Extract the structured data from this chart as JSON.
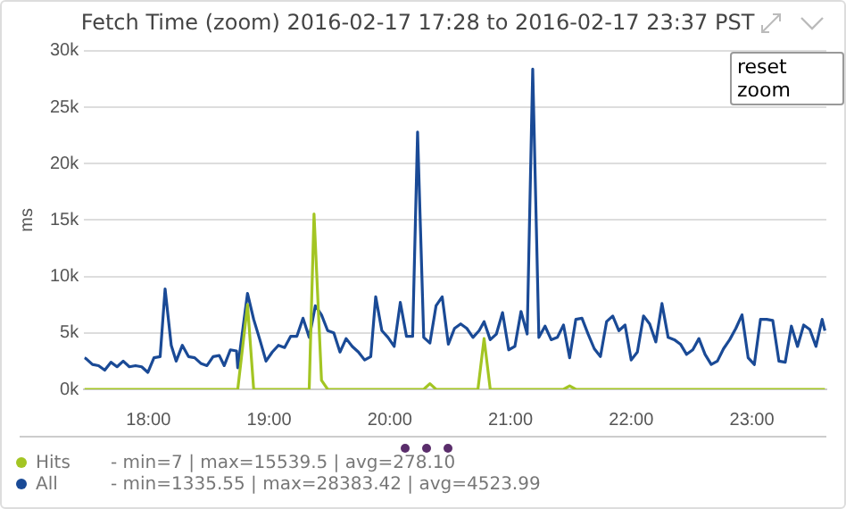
{
  "chart_data": {
    "type": "line",
    "title": "Fetch Time (zoom) 2016-02-17 17:28 to 2016-02-17 23:37 PST",
    "ylabel": "ms",
    "xlim": [
      17.467,
      23.617
    ],
    "xticks": [
      {
        "value": 18,
        "label": "18:00"
      },
      {
        "value": 19,
        "label": "19:00"
      },
      {
        "value": 20,
        "label": "20:00"
      },
      {
        "value": 21,
        "label": "21:00"
      },
      {
        "value": 22,
        "label": "22:00"
      },
      {
        "value": 23,
        "label": "23:00"
      }
    ],
    "ylim": [
      0,
      30000
    ],
    "yticks": [
      {
        "value": 0,
        "label": "0k"
      },
      {
        "value": 5000,
        "label": "5k"
      },
      {
        "value": 10000,
        "label": "10k"
      },
      {
        "value": 15000,
        "label": "15k"
      },
      {
        "value": 20000,
        "label": "20k"
      },
      {
        "value": 25000,
        "label": "25k"
      },
      {
        "value": 30000,
        "label": "30k"
      }
    ],
    "grid": "y",
    "legend": "bottom",
    "marker": "none",
    "line_style": "solid",
    "series": [
      {
        "name": "Hits",
        "color": "#a3c523",
        "x": [
          17.47,
          18.74,
          18.821,
          18.872,
          19.332,
          19.372,
          19.434,
          19.485,
          20.281,
          20.332,
          20.383,
          20.73,
          20.781,
          20.832,
          21.439,
          21.49,
          21.541,
          23.605
        ],
        "values": [
          0,
          0,
          7500,
          0,
          0,
          15539.5,
          800,
          0,
          0,
          500,
          0,
          0,
          4500,
          0,
          0,
          300,
          0,
          0
        ]
      },
      {
        "name": "All",
        "color": "#1a4a96",
        "x": [
          17.47,
          17.485,
          17.536,
          17.587,
          17.638,
          17.689,
          17.74,
          17.791,
          17.842,
          17.893,
          17.944,
          17.995,
          18.046,
          18.097,
          18.138,
          18.189,
          18.23,
          18.281,
          18.332,
          18.383,
          18.434,
          18.485,
          18.536,
          18.587,
          18.628,
          18.679,
          18.73,
          18.74,
          18.821,
          18.872,
          18.923,
          18.974,
          19.026,
          19.077,
          19.128,
          19.179,
          19.23,
          19.281,
          19.332,
          19.383,
          19.434,
          19.485,
          19.536,
          19.587,
          19.638,
          19.689,
          19.74,
          19.791,
          19.842,
          19.883,
          19.934,
          19.985,
          20.036,
          20.087,
          20.138,
          20.189,
          20.23,
          20.281,
          20.332,
          20.383,
          20.434,
          20.485,
          20.536,
          20.587,
          20.638,
          20.689,
          20.74,
          20.781,
          20.832,
          20.883,
          20.934,
          20.985,
          21.036,
          21.087,
          21.138,
          21.184,
          21.235,
          21.286,
          21.337,
          21.388,
          21.439,
          21.49,
          21.541,
          21.592,
          21.643,
          21.694,
          21.745,
          21.796,
          21.847,
          21.898,
          21.949,
          22.0,
          22.051,
          22.102,
          22.153,
          22.204,
          22.255,
          22.306,
          22.357,
          22.408,
          22.459,
          22.51,
          22.561,
          22.612,
          22.663,
          22.714,
          22.765,
          22.816,
          22.867,
          22.918,
          22.969,
          23.02,
          23.071,
          23.122,
          23.173,
          23.224,
          23.276,
          23.327,
          23.378,
          23.429,
          23.48,
          23.531,
          23.582,
          23.605
        ],
        "values": [
          2800,
          2700,
          2200,
          2100,
          1700,
          2400,
          2000,
          2500,
          2000,
          2100,
          2000,
          1500,
          2800,
          2900,
          8900,
          3900,
          2500,
          3900,
          2900,
          2800,
          2300,
          2100,
          2900,
          3000,
          2100,
          3500,
          3400,
          1900,
          8500,
          6200,
          4400,
          2500,
          3300,
          3900,
          3700,
          4700,
          4700,
          6300,
          4600,
          7400,
          6600,
          5200,
          5000,
          3300,
          4500,
          3800,
          3300,
          2600,
          2900,
          8200,
          5200,
          4600,
          3800,
          7700,
          4700,
          4700,
          22800,
          4600,
          4100,
          7400,
          8200,
          4000,
          5400,
          5800,
          5400,
          4600,
          5200,
          6000,
          4400,
          4900,
          6800,
          3500,
          3800,
          6900,
          4900,
          28383.42,
          4600,
          5600,
          4400,
          4600,
          5700,
          2800,
          6200,
          6300,
          4900,
          3600,
          2900,
          6000,
          6500,
          5200,
          5700,
          2600,
          3300,
          6500,
          5800,
          4200,
          7600,
          4600,
          4400,
          4000,
          3100,
          3500,
          4500,
          3100,
          2200,
          2500,
          3600,
          4400,
          5400,
          6600,
          2800,
          2200,
          6200,
          6200,
          6100,
          2500,
          2400,
          5600,
          3800,
          5700,
          5300,
          3800,
          6200,
          5200
        ]
      }
    ],
    "annotations": [
      "reset zoom",
      "- min=7 | max=15539.5 | avg=278.10",
      "- min=1335.55 | max=28383.42 | avg=4523.99"
    ]
  }
}
